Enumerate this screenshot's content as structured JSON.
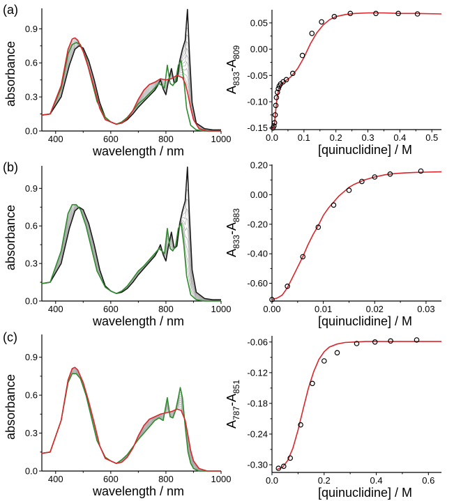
{
  "figure": {
    "panels": [
      {
        "label": "(a)",
        "spectra": {
          "xlabel": "wavelength / nm",
          "ylabel": "absorbance",
          "xticks": [
            "400",
            "600",
            "800",
            "1000"
          ],
          "yticks": [
            "0.0",
            "0.3",
            "0.6",
            "0.9"
          ]
        },
        "titration": {
          "xlabel": "[quinuclidine] / M",
          "ylabel_main": "A",
          "ylabel_sub1": "833",
          "ylabel_mid": "-A",
          "ylabel_sub2": "809",
          "xticks": [
            "0.0",
            "0.1",
            "0.2",
            "0.3",
            "0.4",
            "0.5"
          ],
          "yticks": [
            "-0.15",
            "-0.10",
            "-0.05",
            "0.00",
            "0.05"
          ]
        }
      },
      {
        "label": "(b)",
        "spectra": {
          "xlabel": "wavelength / nm",
          "ylabel": "absorbance",
          "xticks": [
            "400",
            "600",
            "800",
            "1000"
          ],
          "yticks": [
            "0.0",
            "0.3",
            "0.6",
            "0.9"
          ]
        },
        "titration": {
          "xlabel": "[quinuclidine] / M",
          "ylabel_main": "A",
          "ylabel_sub1": "833",
          "ylabel_mid": "-A",
          "ylabel_sub2": "883",
          "xticks": [
            "0.00",
            "0.01",
            "0.02",
            "0.03"
          ],
          "yticks": [
            "-0.60",
            "-0.40",
            "-0.20",
            "0.00",
            "0.20"
          ]
        }
      },
      {
        "label": "(c)",
        "spectra": {
          "xlabel": "wavelength / nm",
          "ylabel": "absorbance",
          "xticks": [
            "400",
            "600",
            "800",
            "1000"
          ],
          "yticks": [
            "0.0",
            "0.3",
            "0.6",
            "0.9"
          ]
        },
        "titration": {
          "xlabel": "[quinuclidine] / M",
          "ylabel_main": "A",
          "ylabel_sub1": "787",
          "ylabel_mid": "-A",
          "ylabel_sub2": "851",
          "xticks": [
            "0.0",
            "0.2",
            "0.4",
            "0.6"
          ],
          "yticks": [
            "-0.30",
            "-0.24",
            "-0.18",
            "-0.12",
            "-0.06"
          ]
        }
      }
    ]
  },
  "colors": {
    "start": "#1a1a1a",
    "end_green": "#2e8b2e",
    "end_red": "#d9262b",
    "intermediate": "#a9a9a9",
    "fit": "#d9262b",
    "points": "#000000"
  },
  "chart_data": [
    {
      "panel": "(a)",
      "type": "line",
      "xlim": [
        350,
        1000
      ],
      "ylim": [
        0,
        1.08
      ],
      "series": [
        {
          "role": "initial",
          "x": [
            350,
            380,
            420,
            450,
            470,
            485,
            500,
            520,
            540,
            560,
            580,
            600,
            620,
            640,
            660,
            680,
            700,
            720,
            740,
            760,
            770,
            780,
            790,
            800,
            810,
            820,
            830,
            840,
            850,
            860,
            870,
            878,
            885,
            895,
            910,
            940,
            970,
            1000
          ],
          "y": [
            0.14,
            0.15,
            0.3,
            0.58,
            0.72,
            0.75,
            0.73,
            0.62,
            0.45,
            0.25,
            0.12,
            0.08,
            0.06,
            0.07,
            0.1,
            0.15,
            0.21,
            0.26,
            0.31,
            0.36,
            0.4,
            0.45,
            0.37,
            0.32,
            0.45,
            0.55,
            0.42,
            0.44,
            0.62,
            0.72,
            0.8,
            1.07,
            0.7,
            0.25,
            0.07,
            0.02,
            0.01,
            0.01
          ]
        },
        {
          "role": "final-1",
          "x": [
            350,
            380,
            420,
            445,
            460,
            475,
            490,
            510,
            530,
            550,
            580,
            600,
            620,
            640,
            660,
            680,
            700,
            720,
            740,
            760,
            775,
            785,
            795,
            805,
            815,
            825,
            835,
            845,
            855,
            865,
            875,
            890,
            910,
            940,
            970,
            1000
          ],
          "y": [
            0.14,
            0.15,
            0.38,
            0.68,
            0.76,
            0.78,
            0.76,
            0.64,
            0.45,
            0.26,
            0.12,
            0.08,
            0.06,
            0.08,
            0.12,
            0.18,
            0.24,
            0.28,
            0.33,
            0.38,
            0.42,
            0.4,
            0.38,
            0.58,
            0.42,
            0.4,
            0.44,
            0.58,
            0.62,
            0.45,
            0.2,
            0.05,
            0.01,
            0.0,
            0.0,
            0.0
          ]
        },
        {
          "role": "final-2",
          "x": [
            350,
            380,
            420,
            445,
            460,
            470,
            480,
            500,
            520,
            540,
            560,
            580,
            600,
            620,
            640,
            660,
            680,
            700,
            720,
            740,
            760,
            780,
            800,
            820,
            840,
            860,
            870,
            880,
            890,
            900,
            920,
            950,
            1000
          ],
          "y": [
            0.14,
            0.15,
            0.4,
            0.72,
            0.81,
            0.82,
            0.8,
            0.7,
            0.55,
            0.38,
            0.2,
            0.1,
            0.08,
            0.06,
            0.07,
            0.11,
            0.18,
            0.28,
            0.36,
            0.41,
            0.43,
            0.46,
            0.45,
            0.46,
            0.49,
            0.47,
            0.42,
            0.32,
            0.2,
            0.1,
            0.02,
            0.0,
            0.0
          ]
        }
      ]
    },
    {
      "panel": "(a)",
      "type": "scatter",
      "xlim": [
        0,
        0.53
      ],
      "ylim": [
        -0.153,
        0.075
      ],
      "points": {
        "x": [
          0.003,
          0.006,
          0.008,
          0.01,
          0.012,
          0.014,
          0.017,
          0.02,
          0.023,
          0.027,
          0.035,
          0.045,
          0.065,
          0.095,
          0.125,
          0.155,
          0.195,
          0.245,
          0.325,
          0.395,
          0.455
        ],
        "y": [
          -0.15,
          -0.146,
          -0.14,
          -0.125,
          -0.107,
          -0.092,
          -0.082,
          -0.075,
          -0.07,
          -0.066,
          -0.062,
          -0.058,
          -0.046,
          -0.012,
          0.03,
          0.052,
          0.062,
          0.068,
          0.068,
          0.068,
          0.067
        ]
      },
      "fit": {
        "x": [
          0,
          0.004,
          0.008,
          0.012,
          0.016,
          0.02,
          0.025,
          0.03,
          0.04,
          0.05,
          0.06,
          0.08,
          0.1,
          0.12,
          0.14,
          0.16,
          0.18,
          0.2,
          0.23,
          0.26,
          0.3,
          0.35,
          0.4,
          0.45,
          0.53
        ],
        "y": [
          -0.153,
          -0.15,
          -0.14,
          -0.115,
          -0.093,
          -0.08,
          -0.071,
          -0.066,
          -0.061,
          -0.057,
          -0.052,
          -0.037,
          -0.016,
          0.01,
          0.031,
          0.046,
          0.056,
          0.062,
          0.066,
          0.068,
          0.069,
          0.069,
          0.068,
          0.068,
          0.067
        ]
      }
    },
    {
      "panel": "(b)",
      "type": "line",
      "xlim": [
        350,
        1000
      ],
      "ylim": [
        0,
        1.08
      ],
      "series": [
        {
          "role": "initial",
          "x": [
            350,
            380,
            420,
            450,
            470,
            485,
            500,
            520,
            540,
            560,
            580,
            600,
            620,
            640,
            660,
            680,
            700,
            720,
            740,
            760,
            770,
            780,
            790,
            800,
            810,
            820,
            830,
            840,
            850,
            860,
            870,
            878,
            885,
            895,
            910,
            940,
            970,
            1000
          ],
          "y": [
            0.14,
            0.15,
            0.3,
            0.58,
            0.72,
            0.75,
            0.73,
            0.62,
            0.45,
            0.25,
            0.12,
            0.08,
            0.06,
            0.07,
            0.1,
            0.15,
            0.21,
            0.26,
            0.31,
            0.36,
            0.4,
            0.45,
            0.37,
            0.32,
            0.45,
            0.55,
            0.42,
            0.44,
            0.62,
            0.72,
            0.8,
            1.07,
            0.7,
            0.25,
            0.07,
            0.02,
            0.01,
            0.01
          ]
        },
        {
          "role": "final",
          "x": [
            350,
            380,
            420,
            445,
            460,
            475,
            490,
            510,
            530,
            550,
            580,
            600,
            620,
            640,
            660,
            680,
            700,
            720,
            740,
            760,
            775,
            785,
            795,
            805,
            815,
            825,
            835,
            845,
            855,
            865,
            875,
            890,
            910,
            940,
            970,
            1000
          ],
          "y": [
            0.14,
            0.15,
            0.4,
            0.7,
            0.77,
            0.77,
            0.73,
            0.6,
            0.42,
            0.24,
            0.11,
            0.08,
            0.06,
            0.08,
            0.12,
            0.18,
            0.24,
            0.28,
            0.33,
            0.38,
            0.42,
            0.4,
            0.38,
            0.58,
            0.42,
            0.4,
            0.44,
            0.58,
            0.62,
            0.45,
            0.2,
            0.05,
            0.01,
            0.0,
            0.0,
            0.0
          ]
        }
      ]
    },
    {
      "panel": "(b)",
      "type": "scatter",
      "xlim": [
        0,
        0.033
      ],
      "ylim": [
        -0.72,
        0.205
      ],
      "points": {
        "x": [
          0.0,
          0.003,
          0.006,
          0.009,
          0.012,
          0.015,
          0.0175,
          0.02,
          0.023,
          0.029
        ],
        "y": [
          -0.71,
          -0.62,
          -0.42,
          -0.22,
          -0.07,
          0.03,
          0.09,
          0.12,
          0.14,
          0.16
        ]
      },
      "fit": {
        "x": [
          0,
          0.001,
          0.002,
          0.003,
          0.004,
          0.005,
          0.006,
          0.007,
          0.008,
          0.009,
          0.01,
          0.011,
          0.012,
          0.013,
          0.014,
          0.015,
          0.016,
          0.018,
          0.02,
          0.022,
          0.024,
          0.026,
          0.028,
          0.03,
          0.033
        ],
        "y": [
          -0.71,
          -0.7,
          -0.68,
          -0.63,
          -0.56,
          -0.49,
          -0.42,
          -0.34,
          -0.27,
          -0.21,
          -0.14,
          -0.09,
          -0.05,
          -0.01,
          0.02,
          0.05,
          0.07,
          0.1,
          0.12,
          0.135,
          0.143,
          0.148,
          0.151,
          0.153,
          0.155
        ]
      }
    },
    {
      "panel": "(c)",
      "type": "line",
      "xlim": [
        350,
        1000
      ],
      "ylim": [
        0,
        1.08
      ],
      "series": [
        {
          "role": "final-green",
          "x": [
            350,
            380,
            420,
            445,
            460,
            475,
            490,
            510,
            530,
            550,
            580,
            600,
            620,
            640,
            660,
            680,
            700,
            720,
            740,
            760,
            775,
            790,
            805,
            815,
            825,
            835,
            845,
            852,
            860,
            870,
            880,
            890,
            900,
            920,
            950,
            1000
          ],
          "y": [
            0.14,
            0.15,
            0.4,
            0.7,
            0.77,
            0.77,
            0.73,
            0.6,
            0.42,
            0.24,
            0.11,
            0.08,
            0.06,
            0.09,
            0.13,
            0.19,
            0.25,
            0.3,
            0.35,
            0.4,
            0.42,
            0.4,
            0.58,
            0.43,
            0.42,
            0.48,
            0.58,
            0.66,
            0.58,
            0.35,
            0.15,
            0.06,
            0.02,
            0.0,
            0.0,
            0.0
          ]
        },
        {
          "role": "final-red",
          "x": [
            350,
            380,
            420,
            445,
            460,
            470,
            480,
            500,
            520,
            540,
            560,
            580,
            600,
            620,
            640,
            660,
            680,
            700,
            720,
            740,
            760,
            780,
            800,
            820,
            840,
            855,
            870,
            880,
            890,
            900,
            920,
            950,
            1000
          ],
          "y": [
            0.14,
            0.15,
            0.4,
            0.72,
            0.81,
            0.82,
            0.8,
            0.7,
            0.55,
            0.38,
            0.2,
            0.1,
            0.08,
            0.06,
            0.07,
            0.11,
            0.18,
            0.28,
            0.36,
            0.41,
            0.43,
            0.45,
            0.46,
            0.47,
            0.49,
            0.48,
            0.4,
            0.28,
            0.16,
            0.08,
            0.02,
            0.0,
            0.0
          ]
        }
      ]
    },
    {
      "panel": "(c)",
      "type": "scatter",
      "xlim": [
        0,
        0.65
      ],
      "ylim": [
        -0.315,
        -0.048
      ],
      "points": {
        "x": [
          0.025,
          0.045,
          0.07,
          0.11,
          0.155,
          0.2,
          0.25,
          0.325,
          0.395,
          0.455,
          0.555
        ],
        "y": [
          -0.307,
          -0.303,
          -0.287,
          -0.222,
          -0.141,
          -0.097,
          -0.081,
          -0.063,
          -0.06,
          -0.058,
          -0.056
        ]
      },
      "fit": {
        "x": [
          0.02,
          0.04,
          0.06,
          0.08,
          0.1,
          0.12,
          0.14,
          0.16,
          0.18,
          0.2,
          0.22,
          0.25,
          0.28,
          0.32,
          0.36,
          0.4,
          0.45,
          0.5,
          0.55,
          0.6,
          0.65
        ],
        "y": [
          -0.309,
          -0.305,
          -0.292,
          -0.268,
          -0.232,
          -0.19,
          -0.15,
          -0.118,
          -0.094,
          -0.079,
          -0.07,
          -0.064,
          -0.061,
          -0.06,
          -0.059,
          -0.059,
          -0.059,
          -0.059,
          -0.059,
          -0.059,
          -0.059
        ]
      }
    }
  ]
}
